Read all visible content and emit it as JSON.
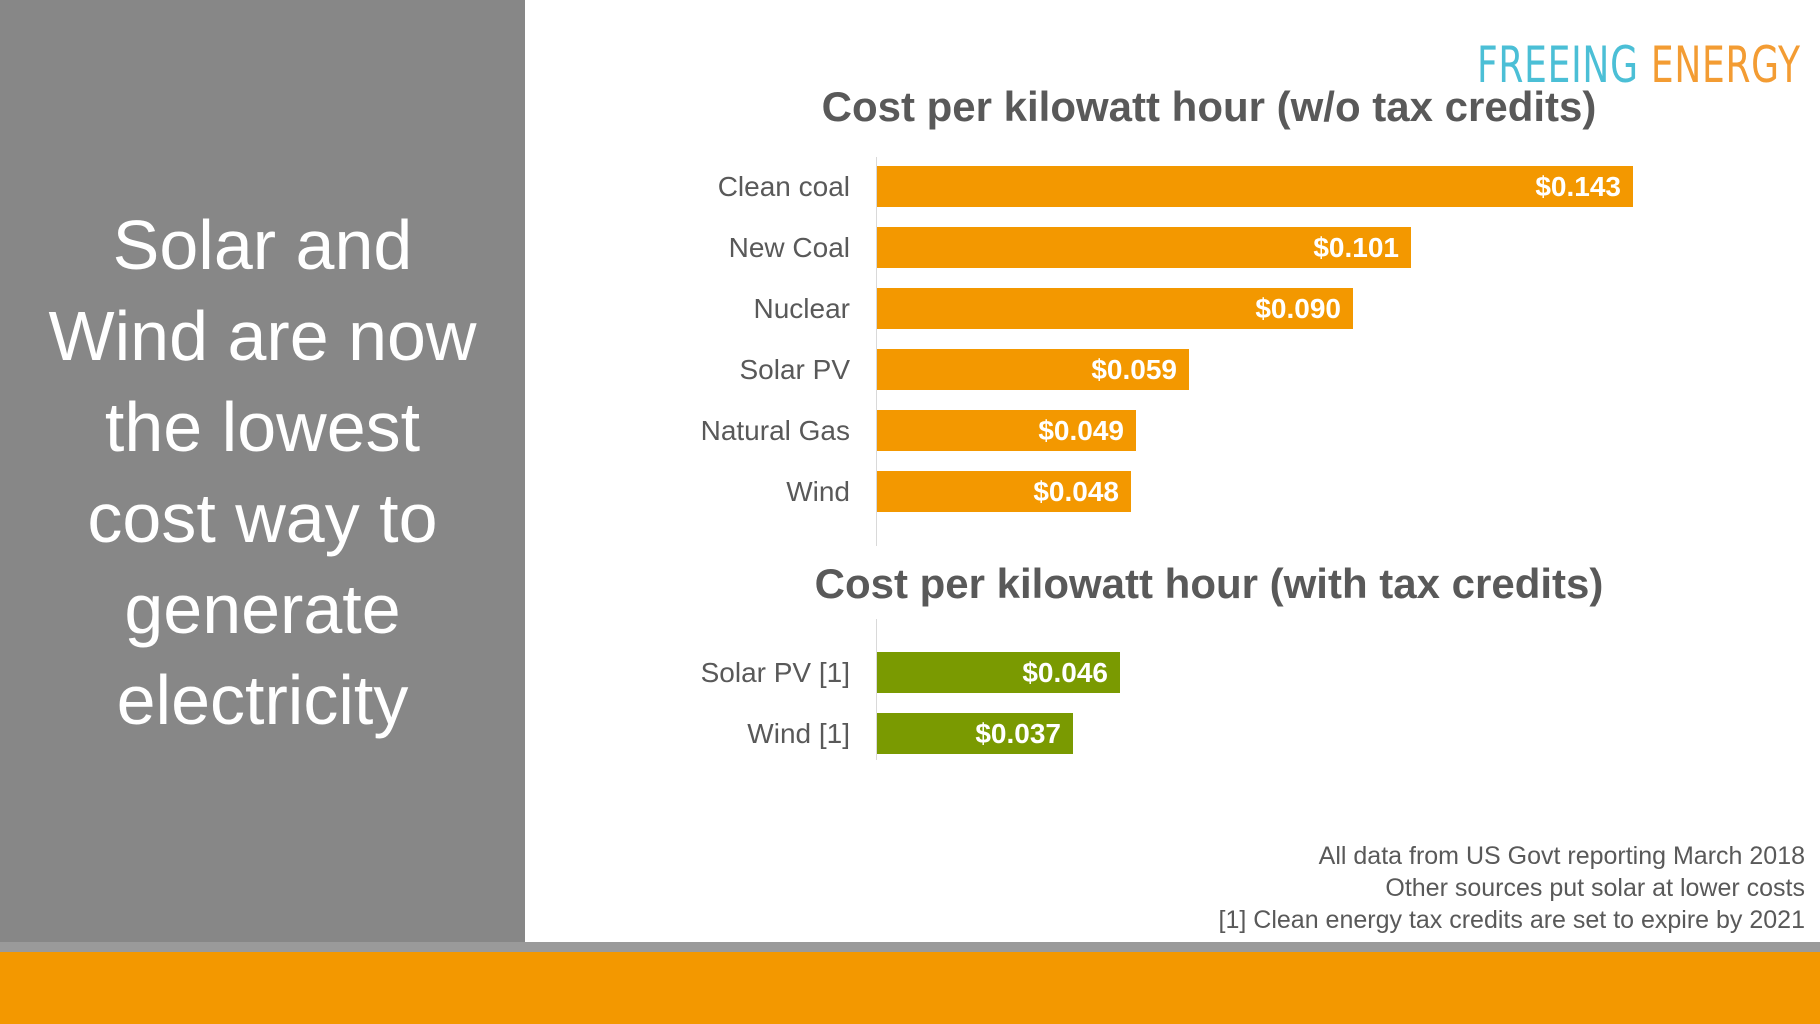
{
  "headline": [
    "Solar and",
    "Wind are now",
    "the lowest",
    "cost way to",
    "generate",
    "electricity"
  ],
  "logo": {
    "word1": "FREEING",
    "word2": "ENERGY",
    "color1": "#4bbfd6",
    "color2": "#f39c33"
  },
  "colors": {
    "orange": "#f39800",
    "green": "#7a9a01",
    "panel": "#878787"
  },
  "chart_data": [
    {
      "type": "bar",
      "orientation": "horizontal",
      "title": "Cost per kilowatt hour (w/o tax credits)",
      "categories": [
        "Clean coal",
        "New Coal",
        "Nuclear",
        "Solar PV",
        "Natural Gas",
        "Wind"
      ],
      "values": [
        0.143,
        0.101,
        0.09,
        0.059,
        0.049,
        0.048
      ],
      "data_labels": [
        "$0.143",
        "$0.101",
        "$0.090",
        "$0.059",
        "$0.049",
        "$0.048"
      ],
      "color": "#f39800",
      "grid": false
    },
    {
      "type": "bar",
      "orientation": "horizontal",
      "title": "Cost per kilowatt hour (with tax credits)",
      "categories": [
        "Solar PV [1]",
        "Wind [1]"
      ],
      "values": [
        0.046,
        0.037
      ],
      "data_labels": [
        "$0.046",
        "$0.037"
      ],
      "color": "#7a9a01",
      "grid": false
    }
  ],
  "notes": [
    "All data from US Govt reporting March 2018",
    "Other sources put solar at lower costs",
    "[1] Clean energy tax credits are set to expire by 2021"
  ]
}
